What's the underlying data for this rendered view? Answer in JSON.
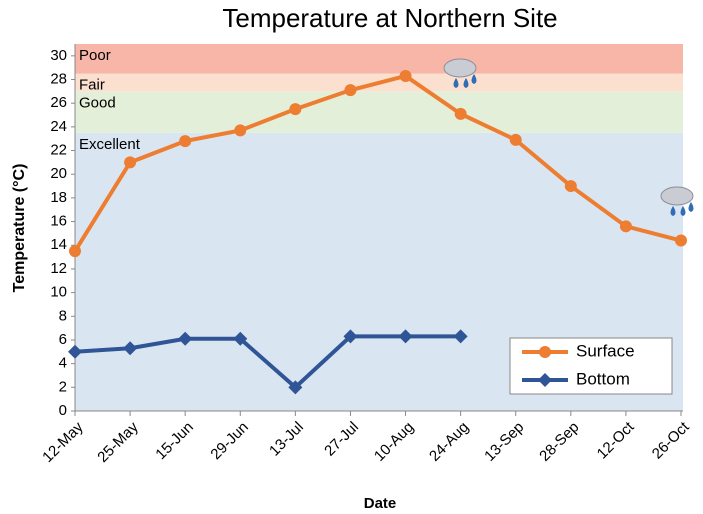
{
  "chart_data": {
    "type": "line",
    "title": "Temperature at Northern Site",
    "x_label": "Date",
    "y_label": "Temperature (°C)",
    "categories": [
      "12-May",
      "25-May",
      "15-Jun",
      "29-Jun",
      "13-Jul",
      "27-Jul",
      "10-Aug",
      "24-Aug",
      "13-Sep",
      "28-Sep",
      "12-Oct",
      "26-Oct"
    ],
    "series": [
      {
        "name": "Surface",
        "color": "#ed7d31",
        "marker": "circle",
        "values": [
          13.5,
          21,
          22.8,
          23.7,
          25.5,
          27.1,
          28.3,
          25.1,
          22.9,
          19,
          15.6,
          14.4
        ]
      },
      {
        "name": "Bottom",
        "color": "#2f5597",
        "marker": "diamond",
        "values": [
          5,
          5.3,
          6.1,
          6.1,
          2,
          6.3,
          6.3,
          6.3,
          null,
          null,
          null,
          null
        ]
      }
    ],
    "bands": [
      {
        "name": "Excellent",
        "from": 0,
        "to": 23.5,
        "color": "#dae5f2"
      },
      {
        "name": "Good",
        "from": 23.5,
        "to": 27,
        "color": "#e4efd9"
      },
      {
        "name": "Fair",
        "from": 27,
        "to": 28.5,
        "color": "#fbe0d0"
      },
      {
        "name": "Poor",
        "from": 28.5,
        "to": 31,
        "color": "#f8b6a8"
      }
    ],
    "ylim": [
      0,
      31
    ],
    "yticks": [
      0,
      2,
      4,
      6,
      8,
      10,
      12,
      14,
      16,
      18,
      20,
      22,
      24,
      26,
      28,
      30
    ],
    "legend": "lower right"
  }
}
